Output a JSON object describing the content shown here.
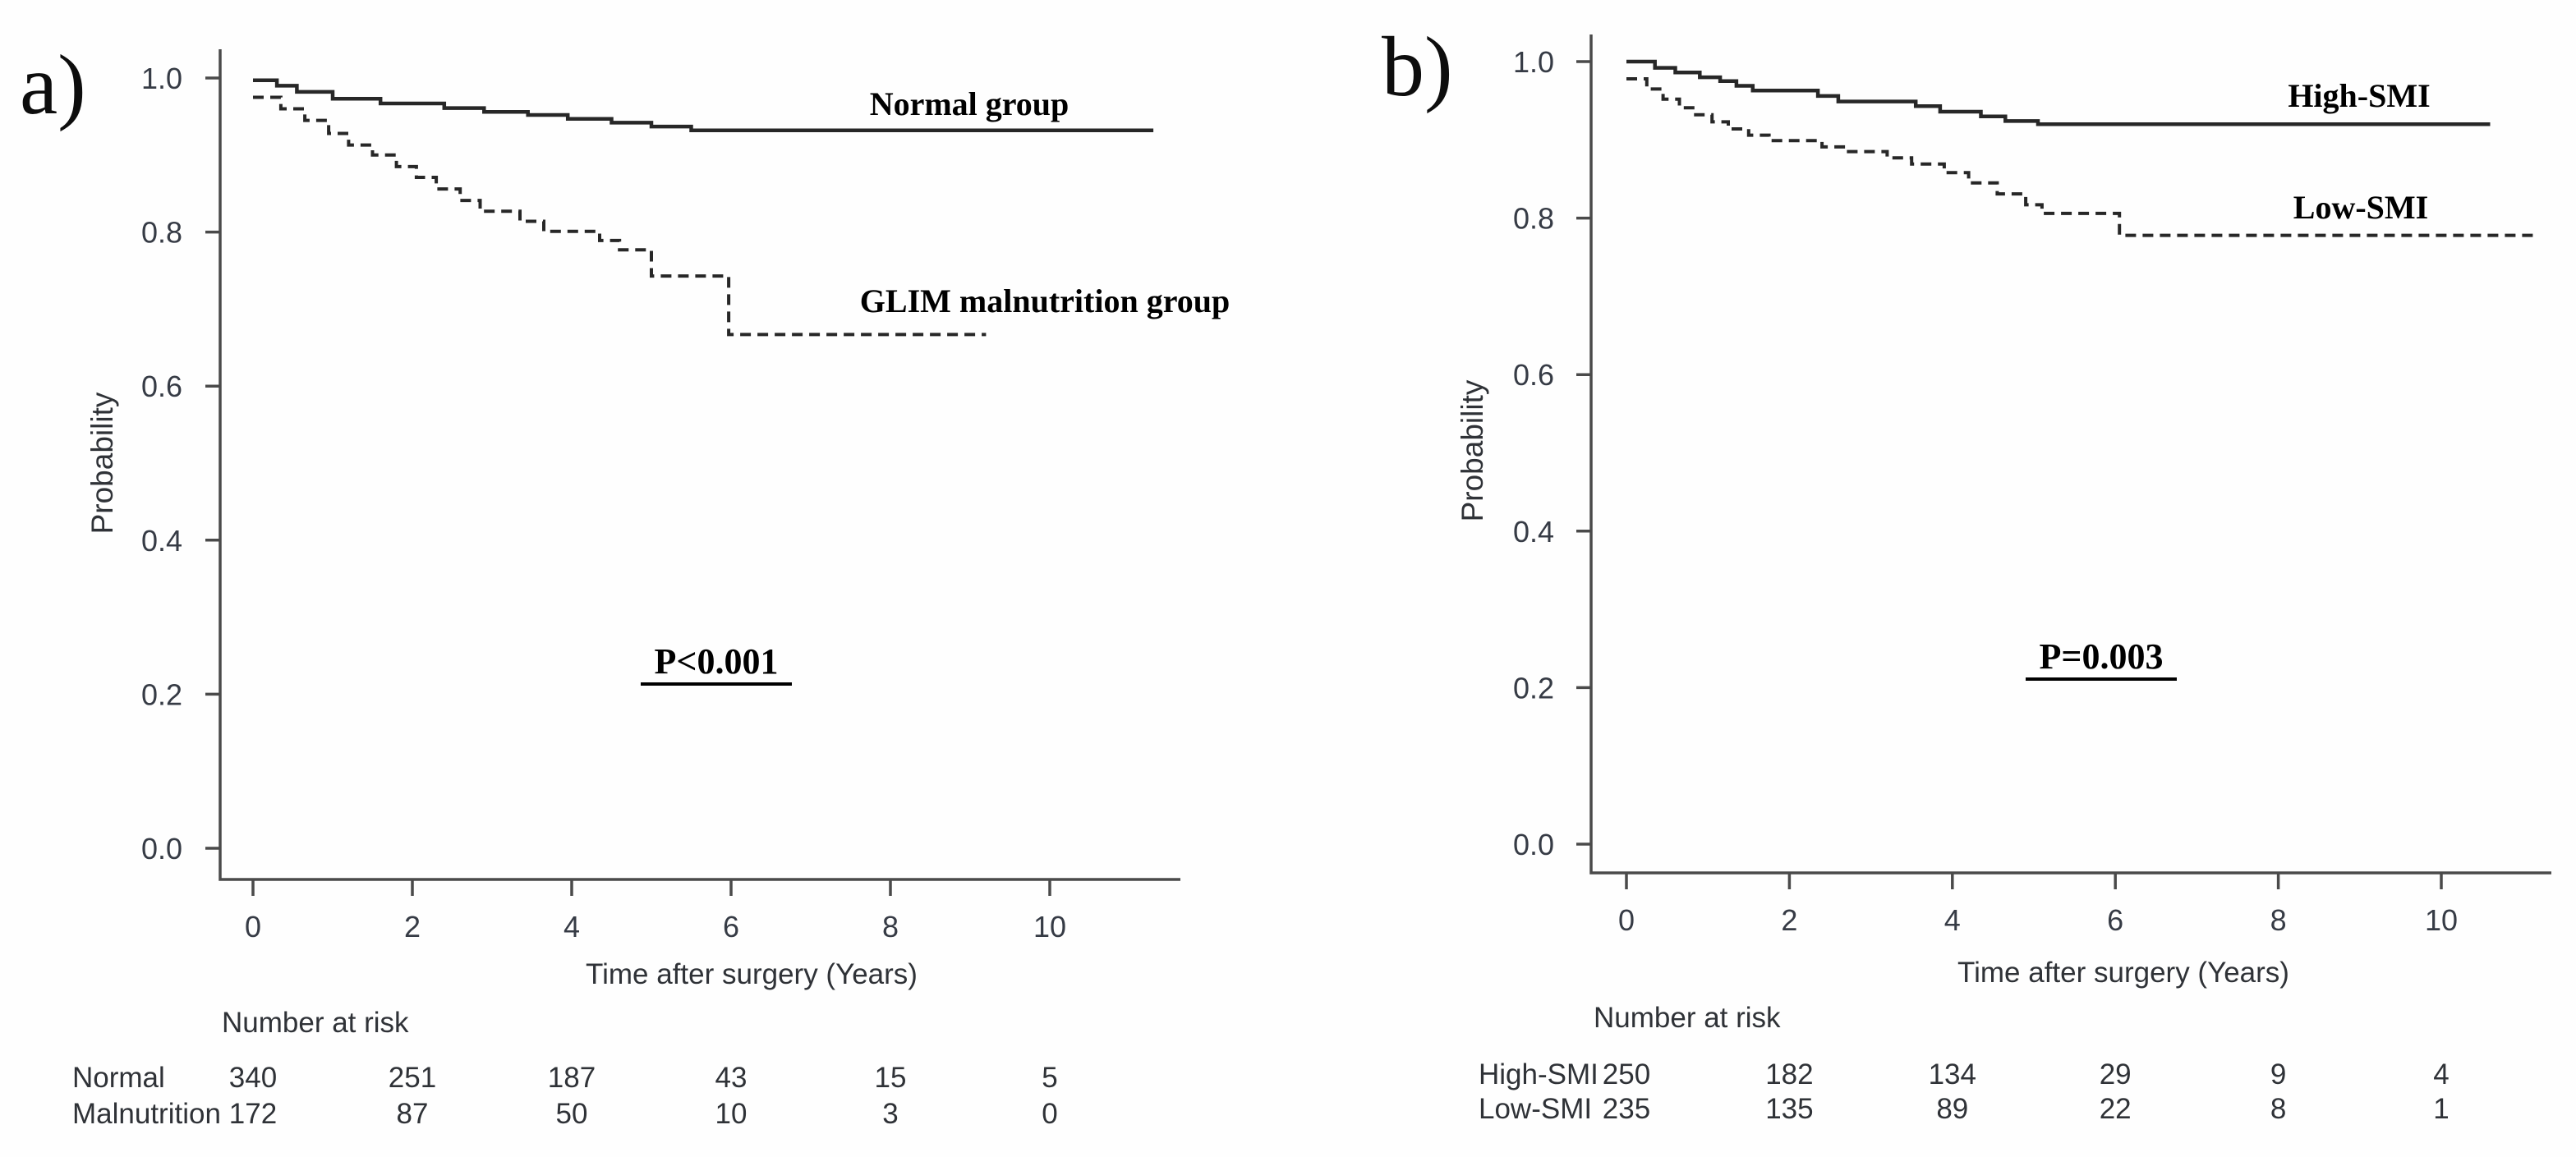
{
  "colors": {
    "curve": "#272727",
    "axis": "#4a4a4a",
    "tick_text": "#363b45",
    "label_text": "#2f3237",
    "annotation_text": "#000000",
    "background": "#fefefe"
  },
  "chart_data": [
    {
      "type": "line",
      "subtype": "kaplan-meier-step",
      "panel_label": "a)",
      "xlabel": "Time after surgery (Years)",
      "ylabel": "Probability",
      "p_value": "P<0.001",
      "xlim": [
        0,
        11.6
      ],
      "ylim": [
        0.0,
        1.0
      ],
      "x_ticks": [
        0,
        2,
        4,
        6,
        8,
        10
      ],
      "y_ticks": [
        "1.0",
        "0.8",
        "0.6",
        "0.4",
        "0.2",
        "0.0"
      ],
      "grid": false,
      "legend_position": "inline-annotations",
      "series": [
        {
          "name": "Normal group",
          "line_style": "solid",
          "end_t": 11.3,
          "points": [
            [
              0,
              0.997
            ],
            [
              0.3,
              0.99
            ],
            [
              0.55,
              0.982
            ],
            [
              1.0,
              0.973
            ],
            [
              1.6,
              0.967
            ],
            [
              2.4,
              0.961
            ],
            [
              2.9,
              0.956
            ],
            [
              3.45,
              0.952
            ],
            [
              3.95,
              0.947
            ],
            [
              4.5,
              0.942
            ],
            [
              5.0,
              0.937
            ],
            [
              5.5,
              0.932
            ]
          ]
        },
        {
          "name": "GLIM malnutrition group",
          "line_style": "dashed",
          "end_t": 9.2,
          "points": [
            [
              0,
              0.975
            ],
            [
              0.35,
              0.96
            ],
            [
              0.65,
              0.945
            ],
            [
              0.95,
              0.928
            ],
            [
              1.2,
              0.913
            ],
            [
              1.5,
              0.9
            ],
            [
              1.8,
              0.885
            ],
            [
              2.05,
              0.871
            ],
            [
              2.3,
              0.856
            ],
            [
              2.6,
              0.841
            ],
            [
              2.85,
              0.827
            ],
            [
              3.35,
              0.814
            ],
            [
              3.65,
              0.801
            ],
            [
              4.35,
              0.789
            ],
            [
              4.6,
              0.777
            ],
            [
              5.0,
              0.743
            ],
            [
              5.97,
              0.667
            ]
          ]
        }
      ],
      "risk_table": {
        "header": "Number at risk",
        "times": [
          0,
          2,
          4,
          6,
          8,
          10
        ],
        "rows": [
          {
            "label": "Normal",
            "values": [
              "340",
              "251",
              "187",
              "43",
              "15",
              "5"
            ]
          },
          {
            "label": "Malnutrition",
            "values": [
              "172",
              "87",
              "50",
              "10",
              "3",
              "0"
            ]
          }
        ]
      }
    },
    {
      "type": "line",
      "subtype": "kaplan-meier-step",
      "panel_label": "b)",
      "xlabel": "Time after surgery (Years)",
      "ylabel": "Probability",
      "p_value": "P=0.003",
      "xlim": [
        0,
        11.6
      ],
      "ylim": [
        0.0,
        1.0
      ],
      "x_ticks": [
        0,
        2,
        4,
        6,
        8,
        10
      ],
      "y_ticks": [
        "1.0",
        "0.8",
        "0.6",
        "0.4",
        "0.2",
        "0.0"
      ],
      "grid": false,
      "legend_position": "inline-annotations",
      "series": [
        {
          "name": "High-SMI",
          "line_style": "solid",
          "end_t": 10.6,
          "points": [
            [
              0,
              1.0
            ],
            [
              0.35,
              0.992
            ],
            [
              0.6,
              0.986
            ],
            [
              0.9,
              0.98
            ],
            [
              1.15,
              0.975
            ],
            [
              1.35,
              0.969
            ],
            [
              1.55,
              0.963
            ],
            [
              2.35,
              0.956
            ],
            [
              2.6,
              0.949
            ],
            [
              3.55,
              0.943
            ],
            [
              3.85,
              0.936
            ],
            [
              4.35,
              0.93
            ],
            [
              4.65,
              0.924
            ],
            [
              5.05,
              0.92
            ]
          ]
        },
        {
          "name": "Low-SMI",
          "line_style": "dashed",
          "end_t": 11.15,
          "points": [
            [
              0,
              0.978
            ],
            [
              0.25,
              0.965
            ],
            [
              0.45,
              0.952
            ],
            [
              0.65,
              0.941
            ],
            [
              0.85,
              0.932
            ],
            [
              1.05,
              0.923
            ],
            [
              1.25,
              0.914
            ],
            [
              1.5,
              0.906
            ],
            [
              1.75,
              0.899
            ],
            [
              2.4,
              0.891
            ],
            [
              2.7,
              0.885
            ],
            [
              3.2,
              0.877
            ],
            [
              3.5,
              0.869
            ],
            [
              3.9,
              0.858
            ],
            [
              4.2,
              0.845
            ],
            [
              4.55,
              0.831
            ],
            [
              4.9,
              0.817
            ],
            [
              5.1,
              0.806
            ],
            [
              6.05,
              0.778
            ]
          ]
        }
      ],
      "risk_table": {
        "header": "Number at risk",
        "times": [
          0,
          2,
          4,
          6,
          8,
          10
        ],
        "rows": [
          {
            "label": "High-SMI",
            "values": [
              "250",
              "182",
              "134",
              "29",
              "9",
              "4"
            ]
          },
          {
            "label": "Low-SMI",
            "values": [
              "235",
              "135",
              "89",
              "22",
              "8",
              "1"
            ]
          }
        ]
      }
    }
  ]
}
